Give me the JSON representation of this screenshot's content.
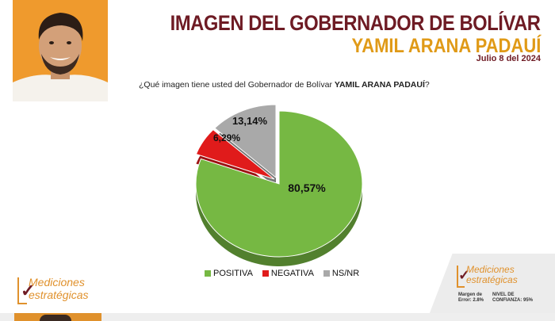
{
  "header": {
    "title": "IMAGEN DEL GOBERNADOR DE BOLÍVAR",
    "subtitle": "YAMIL ARANA PADAUÍ",
    "date": "Julio 8 del 2024"
  },
  "question": {
    "prefix": "¿Qué imagen tiene usted del Gobernador de Bolívar ",
    "name": "YAMIL ARANA PADAUÍ",
    "suffix": "?"
  },
  "chart_data": {
    "type": "pie",
    "title": "",
    "categories": [
      "POSITIVA",
      "NEGATIVA",
      "NS/NR"
    ],
    "values": [
      80.57,
      6.29,
      13.14
    ],
    "labels": [
      "80,57%",
      "6,29%",
      "13,14%"
    ],
    "colors": [
      "#76b843",
      "#e01b1b",
      "#a9a9a9"
    ],
    "legend": "bottom",
    "style": "3d"
  },
  "legend_items": [
    "POSITIVA",
    "NEGATIVA",
    "NS/NR"
  ],
  "branding": {
    "line1": "Mediciones",
    "line2": "estratégicas"
  },
  "footer": {
    "margin_line1": "Margen de",
    "margin_line2": "Error: 2.8%",
    "conf_line1": "NIVEL DE",
    "conf_line2": "CONFIANZA: 95%"
  },
  "colors": {
    "title": "#6e1b24",
    "subtitle": "#e09a17",
    "photo_bg": "#ef9a2d"
  }
}
